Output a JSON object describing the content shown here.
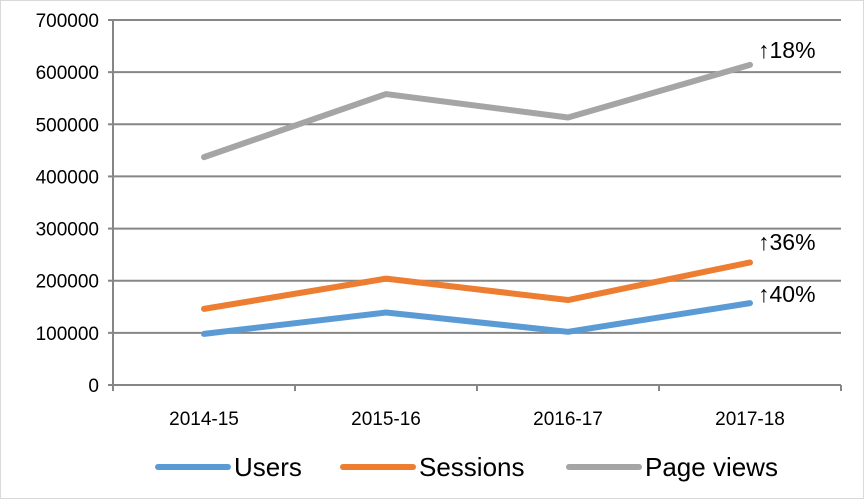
{
  "chart_data": {
    "type": "line",
    "title": "",
    "xlabel": "",
    "ylabel": "",
    "categories": [
      "2014-15",
      "2015-16",
      "2016-17",
      "2017-18"
    ],
    "ylim": [
      0,
      700000
    ],
    "yticks": [
      "0",
      "100000",
      "200000",
      "300000",
      "400000",
      "500000",
      "600000",
      "700000"
    ],
    "grid": true,
    "legend_position": "bottom",
    "series": [
      {
        "name": "Users",
        "color": "#5B9BD5",
        "values": [
          98000,
          139000,
          102000,
          157000
        ],
        "annotation": "↑40%"
      },
      {
        "name": "Sessions",
        "color": "#ED7D31",
        "values": [
          146000,
          204000,
          163000,
          235000
        ],
        "annotation": "↑36%"
      },
      {
        "name": "Page views",
        "color": "#A5A5A5",
        "values": [
          437000,
          558000,
          513000,
          614000
        ],
        "annotation": "↑18%"
      }
    ]
  }
}
